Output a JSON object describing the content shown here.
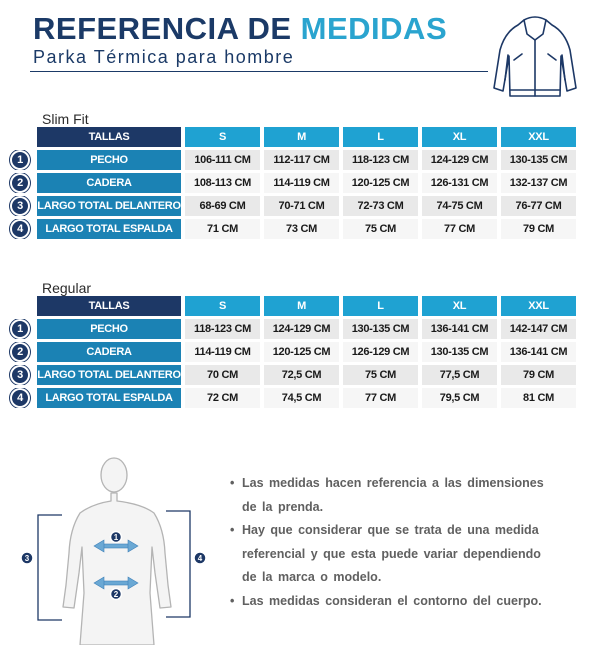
{
  "header": {
    "title_part1": "REFERENCIA DE",
    "title_part2": "MEDIDAS",
    "subtitle": "Parka Térmica  para hombre",
    "illustration": "jacket-icon"
  },
  "colors": {
    "navy": "#1d3866",
    "teal": "#1b82b4",
    "light_blue": "#1fa2d2",
    "cell_gray": "#e9e9e9"
  },
  "sizes": [
    "S",
    "M",
    "L",
    "XL",
    "XXL"
  ],
  "tables": [
    {
      "label": "Slim Fit",
      "header": "TALLAS",
      "rows": [
        {
          "num": "1",
          "label": "PECHO",
          "values": [
            "106-111 CM",
            "112-117 CM",
            "118-123 CM",
            "124-129 CM",
            "130-135 CM"
          ]
        },
        {
          "num": "2",
          "label": "CADERA",
          "values": [
            "108-113 CM",
            "114-119 CM",
            "120-125 CM",
            "126-131 CM",
            "132-137 CM"
          ]
        },
        {
          "num": "3",
          "label": "LARGO TOTAL DELANTERO",
          "values": [
            "68-69 CM",
            "70-71 CM",
            "72-73 CM",
            "74-75 CM",
            "76-77 CM"
          ]
        },
        {
          "num": "4",
          "label": "LARGO TOTAL ESPALDA",
          "values": [
            "71 CM",
            "73 CM",
            "75 CM",
            "77 CM",
            "79 CM"
          ]
        }
      ]
    },
    {
      "label": "Regular",
      "header": "TALLAS",
      "rows": [
        {
          "num": "1",
          "label": "PECHO",
          "values": [
            "118-123 CM",
            "124-129 CM",
            "130-135 CM",
            "136-141 CM",
            "142-147 CM"
          ]
        },
        {
          "num": "2",
          "label": "CADERA",
          "values": [
            "114-119 CM",
            "120-125 CM",
            "126-129 CM",
            "130-135 CM",
            "136-141 CM"
          ]
        },
        {
          "num": "3",
          "label": "LARGO TOTAL DELANTERO",
          "values": [
            "70 CM",
            "72,5 CM",
            "75 CM",
            "77,5 CM",
            "79 CM"
          ]
        },
        {
          "num": "4",
          "label": "LARGO TOTAL ESPALDA",
          "values": [
            "72 CM",
            "74,5 CM",
            "77 CM",
            "79,5 CM",
            "81 CM"
          ]
        }
      ]
    }
  ],
  "figure": {
    "markers": [
      "1",
      "2",
      "3",
      "4"
    ]
  },
  "notes": [
    "Las medidas hacen referencia a las dimensiones de la prenda.",
    "Hay que considerar que se trata de una medida referencial y que esta puede variar dependiendo de la marca o modelo.",
    "Las medidas consideran el contorno del cuerpo."
  ]
}
